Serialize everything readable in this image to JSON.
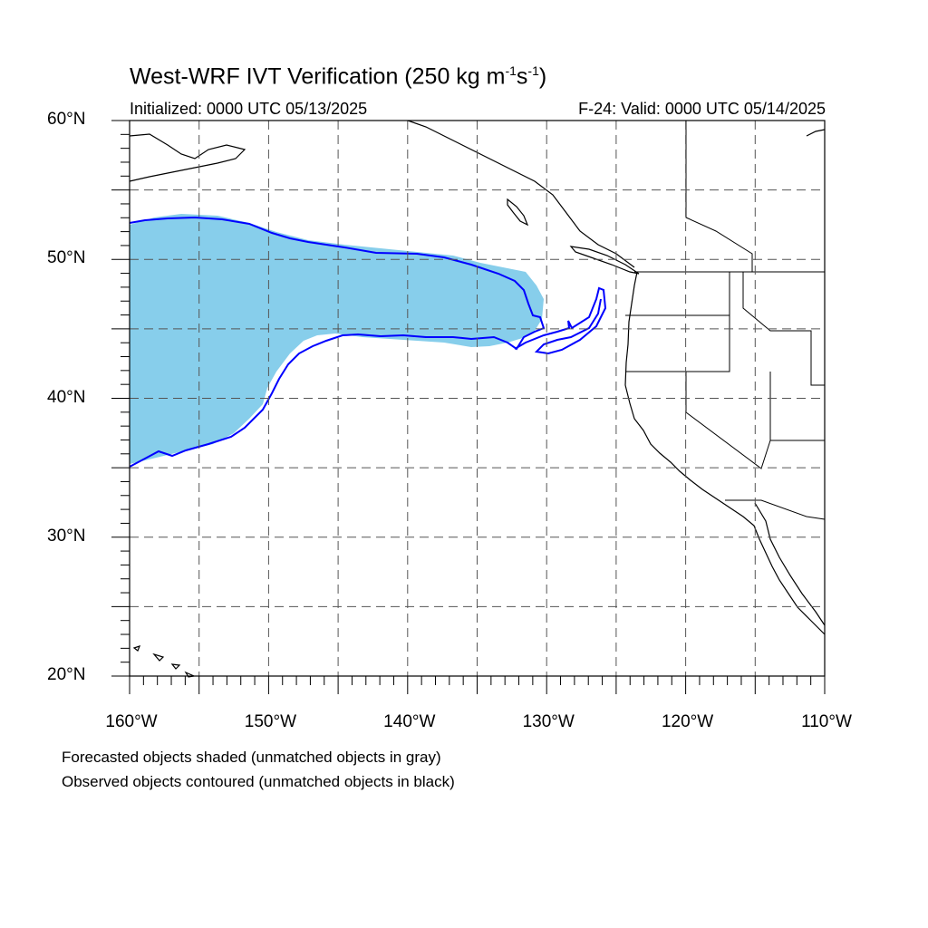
{
  "title": {
    "main": "West-WRF IVT Verification (250 kg m",
    "sup1": "-1",
    "mid": "s",
    "sup2": "-1",
    "end": ")"
  },
  "subtitle_left": "Initialized: 0000 UTC 05/13/2025",
  "subtitle_right": "F-24: Valid: 0000 UTC 05/14/2025",
  "lat_labels": [
    "60°N",
    "50°N",
    "40°N",
    "30°N",
    "20°N"
  ],
  "lon_labels": [
    "160°W",
    "150°W",
    "140°W",
    "130°W",
    "120°W",
    "110°W"
  ],
  "footnotes": [
    "Forecasted objects shaded (unmatched objects in gray)",
    "Observed objects contoured (unmatched objects in black)"
  ],
  "map": {
    "lon_range": [
      -160,
      -110
    ],
    "lat_range": [
      20,
      60
    ],
    "grid_lon_step": 5,
    "grid_lat_step": 5,
    "forecast_color": "#87ceeb",
    "observed_color": "#0000ff",
    "coast_color": "#000000"
  }
}
